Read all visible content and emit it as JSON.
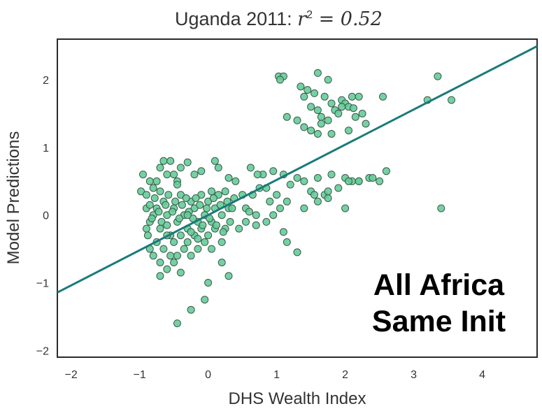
{
  "chart_data": {
    "type": "scatter",
    "title_text": "Uganda 2011: ",
    "title_math_var": "r",
    "title_math_exp": "2",
    "title_math_rest": " = 0.52",
    "xlabel": "DHS Wealth Index",
    "ylabel": "Model Predictions",
    "xlim": [
      -2.2,
      4.8
    ],
    "ylim": [
      -2.1,
      2.6
    ],
    "xticks": [
      "-2",
      "-1",
      "0",
      "1",
      "2",
      "3",
      "4"
    ],
    "yticks": [
      "-2",
      "-1",
      "0",
      "1",
      "2"
    ],
    "grid": false,
    "point_color": "#66cc99",
    "point_edge_color": "#3a5a4a",
    "line_color": "#1a7a7a",
    "fit_line": {
      "slope": 0.52,
      "intercept": 0.0
    },
    "annotation": [
      "All Africa",
      "Same Init"
    ],
    "points": [
      [
        -0.95,
        0.6
      ],
      [
        -0.98,
        0.35
      ],
      [
        -0.9,
        0.3
      ],
      [
        -0.85,
        0.5
      ],
      [
        -0.8,
        0.4
      ],
      [
        -0.75,
        0.5
      ],
      [
        -0.7,
        0.7
      ],
      [
        -0.65,
        0.8
      ],
      [
        -0.6,
        0.6
      ],
      [
        -0.55,
        0.8
      ],
      [
        -0.5,
        0.6
      ],
      [
        -0.45,
        0.5
      ],
      [
        -0.4,
        0.7
      ],
      [
        -0.3,
        0.78
      ],
      [
        -0.2,
        0.6
      ],
      [
        -0.1,
        0.65
      ],
      [
        0.1,
        0.8
      ],
      [
        0.15,
        0.7
      ],
      [
        0.3,
        0.55
      ],
      [
        0.4,
        0.5
      ],
      [
        -0.9,
        -0.2
      ],
      [
        -0.85,
        -0.1
      ],
      [
        -0.88,
        -0.3
      ],
      [
        -0.8,
        0.0
      ],
      [
        -0.75,
        0.1
      ],
      [
        -0.7,
        -0.2
      ],
      [
        -0.65,
        0.2
      ],
      [
        -0.6,
        0.0
      ],
      [
        -0.55,
        -0.3
      ],
      [
        -0.5,
        0.1
      ],
      [
        -0.45,
        -0.1
      ],
      [
        -0.4,
        0.3
      ],
      [
        -0.35,
        0.0
      ],
      [
        -0.3,
        -0.2
      ],
      [
        -0.25,
        0.2
      ],
      [
        -0.2,
        0.1
      ],
      [
        -0.15,
        -0.1
      ],
      [
        -0.1,
        0.3
      ],
      [
        -0.05,
        0.0
      ],
      [
        0.0,
        0.2
      ],
      [
        0.05,
        -0.1
      ],
      [
        0.1,
        0.1
      ],
      [
        0.15,
        0.3
      ],
      [
        0.2,
        0.0
      ],
      [
        0.25,
        -0.2
      ],
      [
        0.3,
        0.1
      ],
      [
        -0.85,
        -0.5
      ],
      [
        -0.8,
        -0.6
      ],
      [
        -0.75,
        -0.4
      ],
      [
        -0.7,
        -0.7
      ],
      [
        -0.65,
        -0.5
      ],
      [
        -0.6,
        -0.3
      ],
      [
        -0.55,
        -0.6
      ],
      [
        -0.5,
        -0.4
      ],
      [
        -0.45,
        -0.6
      ],
      [
        -0.4,
        -0.3
      ],
      [
        -0.35,
        -0.5
      ],
      [
        -0.3,
        -0.4
      ],
      [
        -0.25,
        -0.6
      ],
      [
        -0.2,
        -0.3
      ],
      [
        -0.15,
        -0.5
      ],
      [
        -0.1,
        -0.2
      ],
      [
        -0.05,
        -0.4
      ],
      [
        0.0,
        -0.3
      ],
      [
        0.05,
        -0.5
      ],
      [
        0.1,
        -0.2
      ],
      [
        -0.7,
        -0.9
      ],
      [
        -0.6,
        -0.8
      ],
      [
        -0.5,
        -0.7
      ],
      [
        -0.4,
        -0.85
      ],
      [
        0.2,
        -0.7
      ],
      [
        0.3,
        -0.9
      ],
      [
        0.0,
        -1.0
      ],
      [
        -0.05,
        -1.25
      ],
      [
        -0.25,
        -1.4
      ],
      [
        -0.45,
        -1.6
      ],
      [
        -0.9,
        0.1
      ],
      [
        -0.85,
        0.15
      ],
      [
        -0.82,
        -0.05
      ],
      [
        -0.78,
        0.25
      ],
      [
        -0.72,
        0.05
      ],
      [
        -0.68,
        -0.1
      ],
      [
        -0.62,
        0.15
      ],
      [
        -0.58,
        0.3
      ],
      [
        -0.52,
        0.05
      ],
      [
        -0.48,
        0.2
      ],
      [
        -0.42,
        -0.05
      ],
      [
        -0.38,
        0.15
      ],
      [
        -0.32,
        0.25
      ],
      [
        -0.28,
        0.05
      ],
      [
        -0.22,
        -0.05
      ],
      [
        -0.18,
        0.25
      ],
      [
        -0.12,
        0.15
      ],
      [
        -0.08,
        -0.15
      ],
      [
        -0.02,
        0.1
      ],
      [
        0.02,
        -0.05
      ],
      [
        0.08,
        0.25
      ],
      [
        0.12,
        -0.15
      ],
      [
        0.18,
        0.15
      ],
      [
        0.22,
        -0.25
      ],
      [
        0.28,
        0.2
      ],
      [
        0.32,
        -0.1
      ],
      [
        0.38,
        0.25
      ],
      [
        0.45,
        -0.2
      ],
      [
        0.5,
        0.3
      ],
      [
        0.55,
        0.1
      ],
      [
        0.6,
        0.05
      ],
      [
        0.65,
        0.3
      ],
      [
        0.7,
        0.0
      ],
      [
        0.75,
        0.4
      ],
      [
        0.8,
        0.6
      ],
      [
        0.85,
        0.4
      ],
      [
        0.9,
        0.2
      ],
      [
        0.95,
        0.0
      ],
      [
        1.0,
        0.3
      ],
      [
        1.05,
        0.1
      ],
      [
        1.1,
        0.6
      ],
      [
        1.15,
        0.2
      ],
      [
        1.2,
        0.45
      ],
      [
        1.3,
        0.55
      ],
      [
        1.4,
        0.5
      ],
      [
        1.5,
        0.35
      ],
      [
        1.6,
        0.55
      ],
      [
        1.7,
        0.3
      ],
      [
        1.8,
        0.6
      ],
      [
        1.9,
        0.4
      ],
      [
        2.0,
        0.55
      ],
      [
        2.1,
        0.5
      ],
      [
        2.2,
        0.5
      ],
      [
        2.35,
        0.55
      ],
      [
        2.5,
        0.5
      ],
      [
        2.6,
        0.65
      ],
      [
        1.4,
        0.1
      ],
      [
        1.55,
        0.3
      ],
      [
        1.75,
        0.25
      ],
      [
        2.0,
        0.1
      ],
      [
        0.55,
        -0.1
      ],
      [
        0.7,
        -0.15
      ],
      [
        0.85,
        -0.1
      ],
      [
        1.1,
        -0.25
      ],
      [
        1.15,
        -0.4
      ],
      [
        1.3,
        -0.55
      ],
      [
        0.95,
        0.65
      ],
      [
        0.72,
        0.6
      ],
      [
        0.62,
        0.7
      ],
      [
        1.6,
        0.2
      ],
      [
        1.75,
        0.35
      ],
      [
        2.05,
        0.5
      ],
      [
        1.03,
        2.05
      ],
      [
        1.1,
        2.05
      ],
      [
        1.05,
        2.0
      ],
      [
        1.35,
        1.9
      ],
      [
        1.45,
        1.85
      ],
      [
        1.6,
        2.1
      ],
      [
        1.75,
        2.0
      ],
      [
        1.4,
        1.75
      ],
      [
        1.55,
        1.8
      ],
      [
        1.7,
        1.75
      ],
      [
        1.8,
        1.65
      ],
      [
        1.95,
        1.7
      ],
      [
        2.0,
        1.65
      ],
      [
        2.05,
        1.6
      ],
      [
        2.1,
        1.75
      ],
      [
        2.2,
        1.75
      ],
      [
        2.25,
        1.5
      ],
      [
        1.15,
        1.45
      ],
      [
        1.3,
        1.4
      ],
      [
        1.4,
        1.3
      ],
      [
        1.5,
        1.25
      ],
      [
        1.6,
        1.55
      ],
      [
        1.65,
        1.45
      ],
      [
        1.75,
        1.4
      ],
      [
        1.85,
        1.55
      ],
      [
        1.9,
        1.5
      ],
      [
        2.15,
        1.45
      ],
      [
        2.3,
        1.35
      ],
      [
        1.6,
        1.2
      ],
      [
        1.8,
        1.2
      ],
      [
        2.05,
        1.25
      ],
      [
        2.55,
        1.75
      ],
      [
        3.35,
        2.05
      ],
      [
        3.55,
        1.7
      ],
      [
        3.2,
        1.7
      ],
      [
        3.4,
        0.1
      ],
      [
        1.65,
        1.35
      ],
      [
        1.95,
        1.6
      ],
      [
        2.12,
        1.58
      ],
      [
        1.5,
        1.6
      ],
      [
        2.2,
        0.5
      ],
      [
        2.4,
        0.55
      ],
      [
        -0.3,
        0.0
      ],
      [
        -0.6,
        -0.15
      ],
      [
        0.05,
        0.35
      ],
      [
        -0.15,
        -0.35
      ],
      [
        -0.45,
        0.45
      ],
      [
        0.2,
        -0.4
      ],
      [
        0.35,
        0.1
      ],
      [
        -0.7,
        0.35
      ],
      [
        -0.25,
        -0.25
      ],
      [
        0.25,
        0.35
      ]
    ]
  }
}
